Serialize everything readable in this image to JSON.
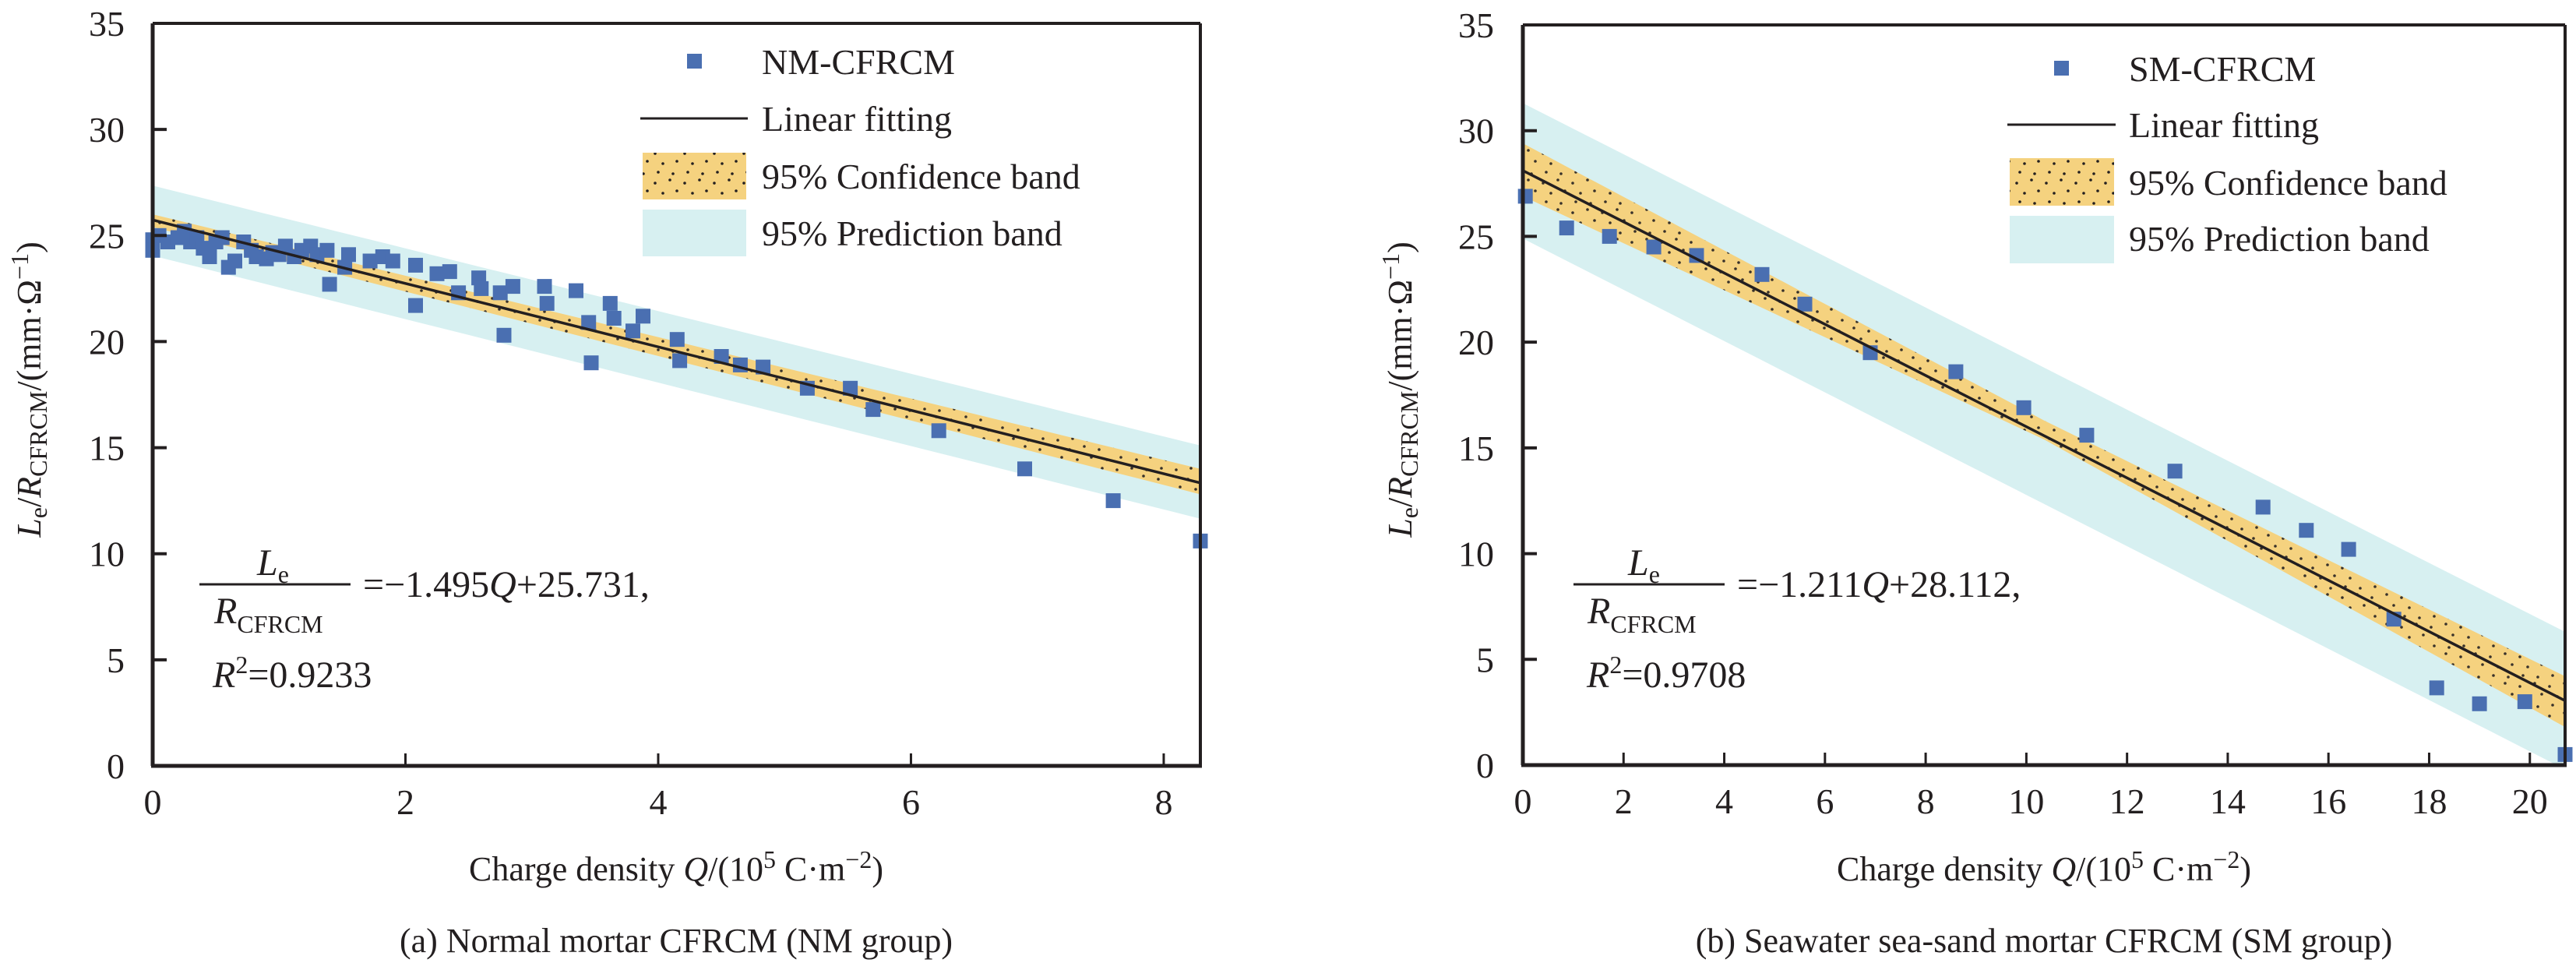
{
  "colors": {
    "marker": "#4a6fb1",
    "fit_line": "#231f20",
    "confidence_band": "#f5d27f",
    "prediction_band": "#d7f0f1",
    "axis": "#231f20"
  },
  "chart_data": [
    {
      "type": "scatter",
      "caption": "(a) Normal mortar CFRCM (NM group)",
      "xlabel": "Charge density Q/(10^5 C·m^-2)",
      "xlabel_parts": {
        "main": "Charge density ",
        "var": "Q",
        "unit_open": "/(10",
        "sup1": "5",
        "unit_mid": " C·m",
        "sup2": "−2",
        "unit_close": ")"
      },
      "ylabel": "Le/RCFRCM/(mm·Ω^-1)",
      "ylabel_parts": {
        "L": "L",
        "e": "e",
        "slash": "/",
        "R": "R",
        "sub": "CFRCM",
        "unit": "/(mm·Ω",
        "sup": "−1",
        "close": ")"
      },
      "xlim": [
        0,
        8.29
      ],
      "ylim": [
        0,
        35
      ],
      "xticks": [
        0,
        2,
        4,
        6,
        8
      ],
      "yticks": [
        0,
        5,
        10,
        15,
        20,
        25,
        30,
        35
      ],
      "grid": false,
      "legend_position": "top-right",
      "legend": {
        "series": "NM-CFRCM",
        "fit": "Linear fitting",
        "confidence": "95% Confidence band",
        "prediction": "95% Prediction band"
      },
      "fit": {
        "slope": -1.495,
        "intercept": 25.731,
        "r2": 0.9233
      },
      "equation": {
        "num_L": "L",
        "num_sub": "e",
        "den_R": "R",
        "den_sub": "CFRCM",
        "rhs_a": "=−1.495",
        "rhs_q": "Q",
        "rhs_b": "+25.731,",
        "r2_R": "R",
        "r2_sup": "2",
        "r2_val": "=0.9233"
      },
      "confidence_band": {
        "x": [
          0,
          8.29
        ],
        "upper": [
          26.0,
          14.0
        ],
        "lower": [
          25.4,
          12.8
        ]
      },
      "prediction_band": {
        "x": [
          0,
          8.29
        ],
        "upper": [
          27.35,
          15.1
        ],
        "lower": [
          24.05,
          11.65
        ]
      },
      "series": [
        {
          "name": "NM-CFRCM",
          "points": [
            [
              0.0,
              24.8
            ],
            [
              0.0,
              24.3
            ],
            [
              0.05,
              25.0
            ],
            [
              0.12,
              24.7
            ],
            [
              0.2,
              24.9
            ],
            [
              0.25,
              25.2
            ],
            [
              0.3,
              24.7
            ],
            [
              0.35,
              24.9
            ],
            [
              0.4,
              24.4
            ],
            [
              0.45,
              24.0
            ],
            [
              0.5,
              24.7
            ],
            [
              0.55,
              24.9
            ],
            [
              0.6,
              23.5
            ],
            [
              0.65,
              23.8
            ],
            [
              0.72,
              24.7
            ],
            [
              0.78,
              24.3
            ],
            [
              0.82,
              24.0
            ],
            [
              0.9,
              23.9
            ],
            [
              0.95,
              24.2
            ],
            [
              1.0,
              24.1
            ],
            [
              1.05,
              24.5
            ],
            [
              1.12,
              24.0
            ],
            [
              1.18,
              24.3
            ],
            [
              1.25,
              24.5
            ],
            [
              1.3,
              24.1
            ],
            [
              1.38,
              24.3
            ],
            [
              1.4,
              22.7
            ],
            [
              1.52,
              23.5
            ],
            [
              1.55,
              24.1
            ],
            [
              1.72,
              23.8
            ],
            [
              1.82,
              24.0
            ],
            [
              1.9,
              23.8
            ],
            [
              2.08,
              23.6
            ],
            [
              2.08,
              21.7
            ],
            [
              2.25,
              23.2
            ],
            [
              2.35,
              23.3
            ],
            [
              2.42,
              22.3
            ],
            [
              2.58,
              23.0
            ],
            [
              2.6,
              22.5
            ],
            [
              2.75,
              22.3
            ],
            [
              2.78,
              20.3
            ],
            [
              2.85,
              22.6
            ],
            [
              3.1,
              22.6
            ],
            [
              3.12,
              21.8
            ],
            [
              3.35,
              22.4
            ],
            [
              3.45,
              20.9
            ],
            [
              3.47,
              19.0
            ],
            [
              3.62,
              21.8
            ],
            [
              3.65,
              21.1
            ],
            [
              3.8,
              20.5
            ],
            [
              3.88,
              21.2
            ],
            [
              4.15,
              20.1
            ],
            [
              4.17,
              19.1
            ],
            [
              4.5,
              19.3
            ],
            [
              4.65,
              18.9
            ],
            [
              4.83,
              18.8
            ],
            [
              5.18,
              17.8
            ],
            [
              5.52,
              17.8
            ],
            [
              5.7,
              16.8
            ],
            [
              6.22,
              15.8
            ],
            [
              6.9,
              14.0
            ],
            [
              7.6,
              12.5
            ],
            [
              8.29,
              10.6
            ]
          ]
        }
      ]
    },
    {
      "type": "scatter",
      "caption": "(b) Seawater sea-sand mortar CFRCM (SM group)",
      "xlabel": "Charge density Q/(10^5 C·m^-2)",
      "xlabel_parts": {
        "main": "Charge density ",
        "var": "Q",
        "unit_open": "/(10",
        "sup1": "5",
        "unit_mid": " C·m",
        "sup2": "−2",
        "unit_close": ")"
      },
      "ylabel": "Le/RCFRCM/(mm·Ω^-1)",
      "ylabel_parts": {
        "L": "L",
        "e": "e",
        "slash": "/",
        "R": "R",
        "sub": "CFRCM",
        "unit": "/(mm·Ω",
        "sup": "−1",
        "close": ")"
      },
      "xlim": [
        0,
        20.7
      ],
      "ylim": [
        0,
        35
      ],
      "xticks": [
        0,
        2,
        4,
        6,
        8,
        10,
        12,
        14,
        16,
        18,
        20
      ],
      "yticks": [
        0,
        5,
        10,
        15,
        20,
        25,
        30,
        35
      ],
      "grid": false,
      "legend_position": "top-right",
      "legend": {
        "series": "SM-CFRCM",
        "fit": "Linear fitting",
        "confidence": "95% Confidence band",
        "prediction": "95% Prediction band"
      },
      "fit": {
        "slope": -1.211,
        "intercept": 28.112,
        "r2": 0.9708
      },
      "equation": {
        "num_L": "L",
        "num_sub": "e",
        "den_R": "R",
        "den_sub": "CFRCM",
        "rhs_a": "=−1.211",
        "rhs_q": "Q",
        "rhs_b": "+28.112,",
        "r2_R": "R",
        "r2_sup": "2",
        "r2_val": "=0.9708"
      },
      "confidence_band": {
        "x": [
          0,
          10.35,
          20.7
        ],
        "upper": [
          29.4,
          16.3,
          4.2
        ],
        "lower": [
          26.9,
          15.4,
          1.8
        ]
      },
      "prediction_band": {
        "x": [
          0,
          20.7
        ],
        "upper": [
          31.3,
          6.3
        ],
        "lower": [
          24.9,
          -0.2
        ]
      },
      "series": [
        {
          "name": "SM-CFRCM",
          "points": [
            [
              0.05,
              26.9
            ],
            [
              0.87,
              25.4
            ],
            [
              1.72,
              25.0
            ],
            [
              2.6,
              24.5
            ],
            [
              3.45,
              24.1
            ],
            [
              4.75,
              23.2
            ],
            [
              5.6,
              21.8
            ],
            [
              6.9,
              19.5
            ],
            [
              8.6,
              18.6
            ],
            [
              9.95,
              16.9
            ],
            [
              11.2,
              15.6
            ],
            [
              12.95,
              13.9
            ],
            [
              14.7,
              12.2
            ],
            [
              15.56,
              11.1
            ],
            [
              16.4,
              10.2
            ],
            [
              17.3,
              6.9
            ],
            [
              18.15,
              3.65
            ],
            [
              19.0,
              2.9
            ],
            [
              19.9,
              3.0
            ],
            [
              20.7,
              0.5
            ]
          ]
        }
      ]
    }
  ]
}
